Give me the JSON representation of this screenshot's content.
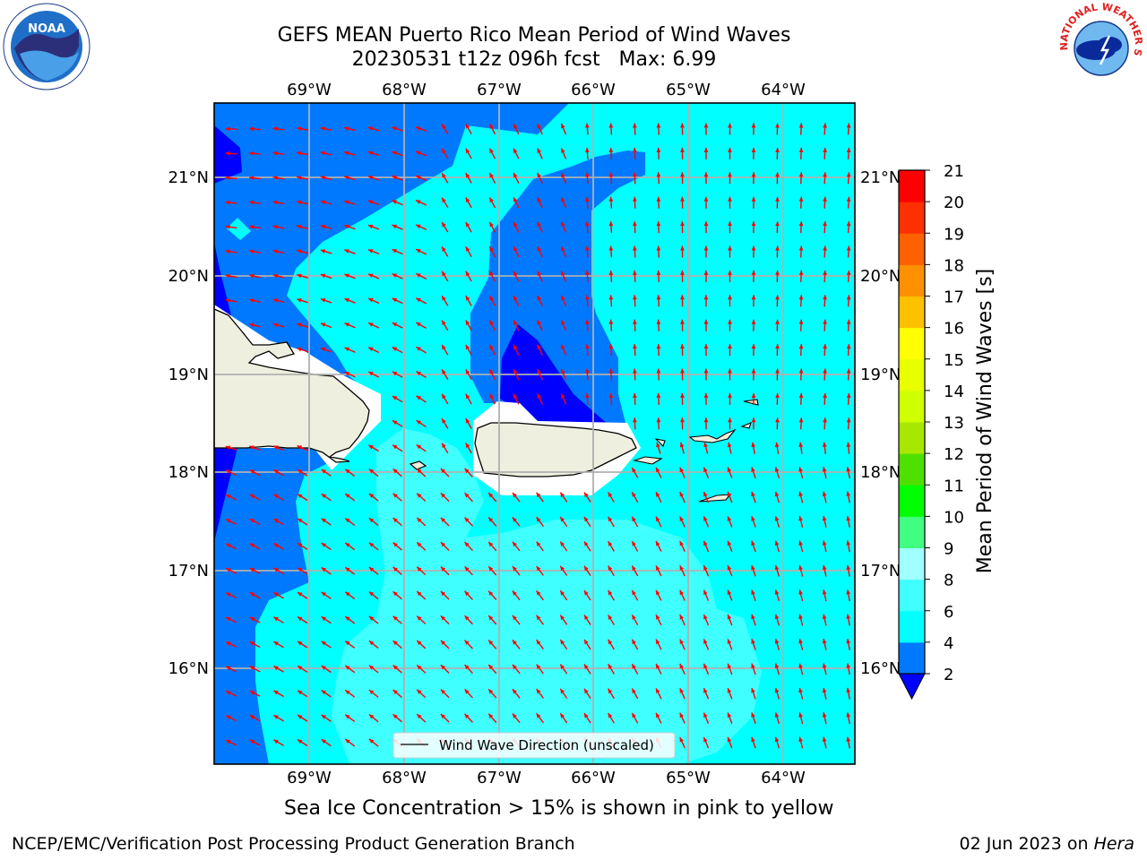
{
  "title": {
    "line1": "GEFS MEAN Puerto Rico Mean Period of Wind Waves",
    "line2": "20230531 t12z 096h fcst   Max: 6.99"
  },
  "map": {
    "lon_labels_top": [
      "69°W",
      "68°W",
      "67°W",
      "66°W",
      "65°W",
      "64°W"
    ],
    "lon_labels_bottom": [
      "69°W",
      "68°W",
      "67°W",
      "66°W",
      "65°W",
      "64°W"
    ],
    "lat_labels_left": [
      "21°N",
      "20°N",
      "19°N",
      "18°N",
      "17°N",
      "16°N"
    ],
    "lat_labels_right": [
      "21°N",
      "20°N",
      "19°N",
      "18°N",
      "17°N",
      "16°N"
    ],
    "legend_label": "Wind Wave Direction (unscaled)",
    "arrow_color": "#ff0000",
    "land_color": "#efefdf"
  },
  "colorbar": {
    "label": "Mean Period of Wind Waves [s]",
    "ticks": [
      "2",
      "4",
      "6",
      "8",
      "9",
      "10",
      "11",
      "12",
      "13",
      "14",
      "15",
      "16",
      "17",
      "18",
      "19",
      "20",
      "21"
    ],
    "colors": [
      "#0079ff",
      "#00ffff",
      "#40ffff",
      "#a0ffff",
      "#40ff80",
      "#00ff00",
      "#50e000",
      "#a8e800",
      "#d0ff00",
      "#e8ff00",
      "#ffff00",
      "#ffc000",
      "#ff9000",
      "#ff6000",
      "#ff3000",
      "#ff0000"
    ],
    "under_color": "#0000ff"
  },
  "caption": "Sea Ice Concentration > 15% is shown in pink to yellow",
  "footer": {
    "left": "NCEP/EMC/Verification Post Processing Product Generation Branch",
    "right_date": "02 Jun 2023 on ",
    "right_host": "Hera"
  },
  "logos": {
    "noaa_text": "NOAA",
    "nws_text": "NATIONAL WEATHER SERVICE"
  }
}
